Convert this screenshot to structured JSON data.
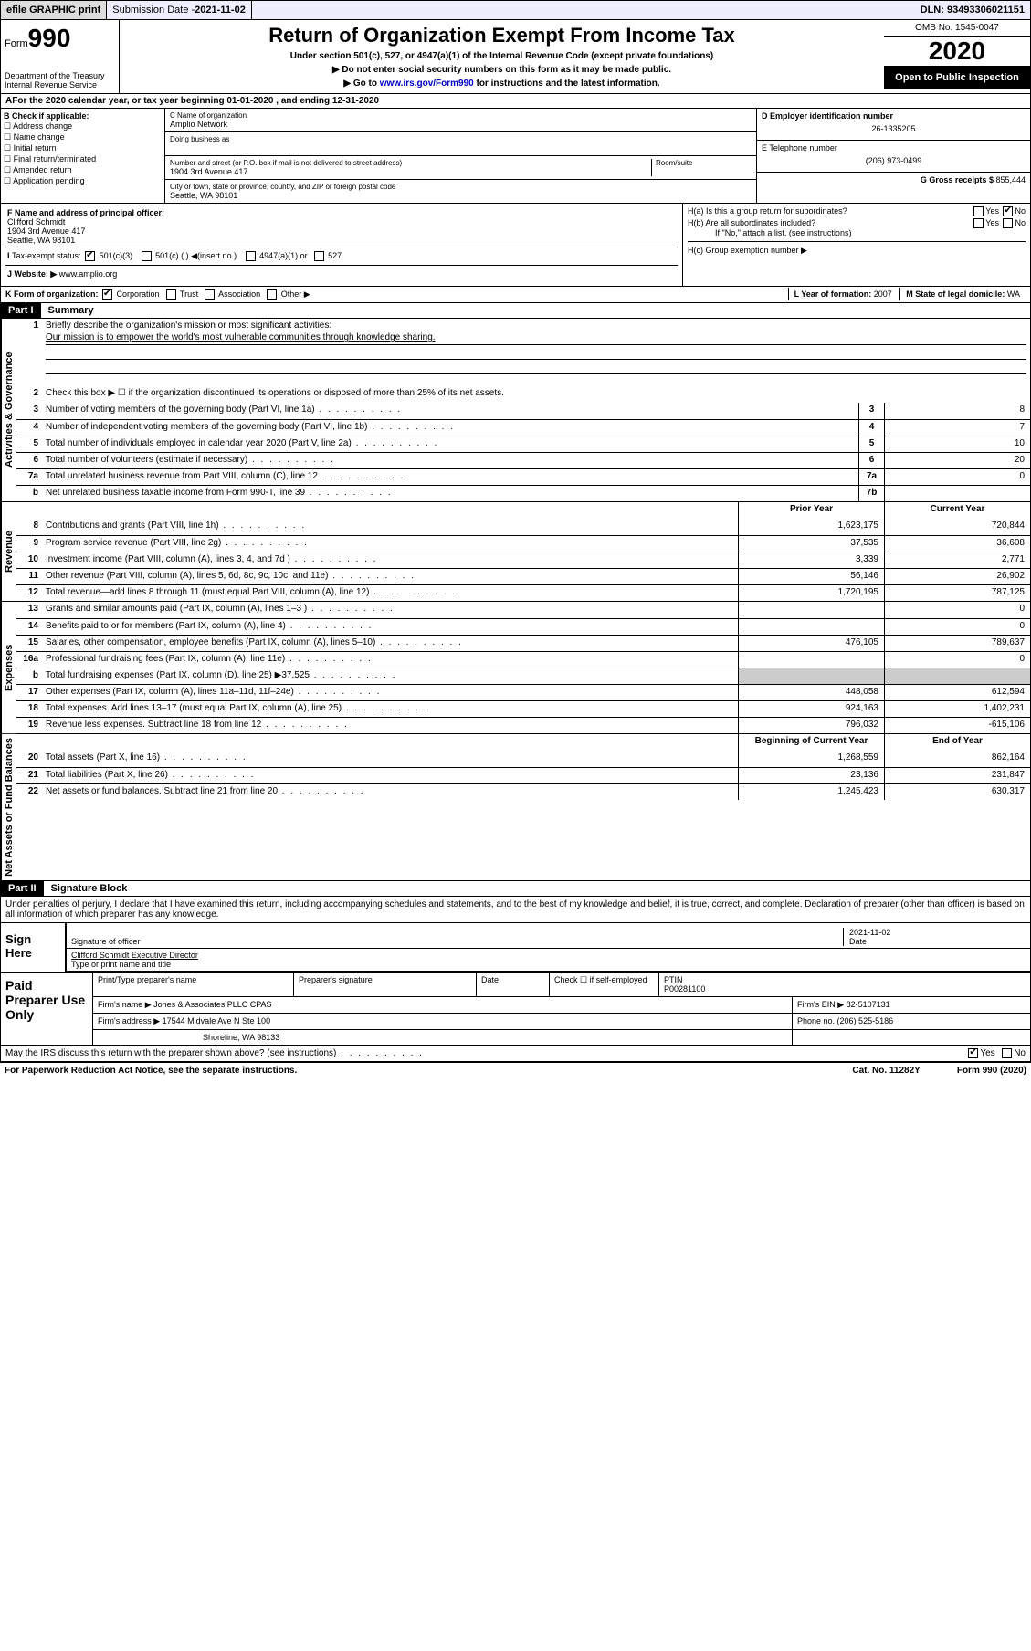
{
  "topbar": {
    "efile": "efile GRAPHIC print",
    "subdate_lbl": "Submission Date - ",
    "subdate": "2021-11-02",
    "dln_lbl": "DLN: ",
    "dln": "93493306021151"
  },
  "header": {
    "form_word": "Form",
    "form_num": "990",
    "dept": "Department of the Treasury\nInternal Revenue Service",
    "title": "Return of Organization Exempt From Income Tax",
    "sub1": "Under section 501(c), 527, or 4947(a)(1) of the Internal Revenue Code (except private foundations)",
    "sub2": "Do not enter social security numbers on this form as it may be made public.",
    "sub3_pre": "Go to ",
    "sub3_link": "www.irs.gov/Form990",
    "sub3_post": " for instructions and the latest information.",
    "omb": "OMB No. 1545-0047",
    "year": "2020",
    "open": "Open to Public Inspection"
  },
  "A": {
    "text": "For the 2020 calendar year, or tax year beginning 01-01-2020    , and ending 12-31-2020"
  },
  "B": {
    "hdr": "B Check if applicable:",
    "opts": [
      "Address change",
      "Name change",
      "Initial return",
      "Final return/terminated",
      "Amended return",
      "Application pending"
    ]
  },
  "C": {
    "name_lbl": "C Name of organization",
    "name": "Amplio Network",
    "dba_lbl": "Doing business as",
    "addr_lbl": "Number and street (or P.O. box if mail is not delivered to street address)",
    "room_lbl": "Room/suite",
    "addr": "1904 3rd Avenue 417",
    "city_lbl": "City or town, state or province, country, and ZIP or foreign postal code",
    "city": "Seattle, WA  98101"
  },
  "D": {
    "lbl": "D Employer identification number",
    "val": "26-1335205"
  },
  "E": {
    "lbl": "E Telephone number",
    "val": "(206) 973-0499"
  },
  "G": {
    "lbl": "G Gross receipts $ ",
    "val": "855,444"
  },
  "F": {
    "lbl": "F  Name and address of principal officer:",
    "name": "Clifford Schmidt",
    "addr1": "1904 3rd Avenue 417",
    "addr2": "Seattle, WA  98101"
  },
  "H": {
    "a": "H(a)  Is this a group return for subordinates?",
    "b": "H(b)  Are all subordinates included?",
    "b_note": "If \"No,\" attach a list. (see instructions)",
    "c": "H(c)  Group exemption number ▶",
    "yes": "Yes",
    "no": "No"
  },
  "I": {
    "lbl": "Tax-exempt status:",
    "o1": "501(c)(3)",
    "o2": "501(c) (  ) ◀(insert no.)",
    "o3": "4947(a)(1) or",
    "o4": "527"
  },
  "J": {
    "lbl": "J   Website: ▶  ",
    "val": "www.amplio.org"
  },
  "K": {
    "lbl": "K Form of organization:",
    "o1": "Corporation",
    "o2": "Trust",
    "o3": "Association",
    "o4": "Other ▶"
  },
  "L": {
    "lbl": "L Year of formation: ",
    "val": "2007"
  },
  "M": {
    "lbl": "M State of legal domicile: ",
    "val": "WA"
  },
  "part1": {
    "num": "Part I",
    "title": "Summary",
    "q1": "Briefly describe the organization's mission or most significant activities:",
    "mission": "Our mission is to empower the world's most vulnerable communities through knowledge sharing.",
    "q2": "Check this box ▶ ☐  if the organization discontinued its operations or disposed of more than 25% of its net assets.",
    "rows_gov": [
      {
        "n": "3",
        "t": "Number of voting members of the governing body (Part VI, line 1a)",
        "nb": "3",
        "v": "8"
      },
      {
        "n": "4",
        "t": "Number of independent voting members of the governing body (Part VI, line 1b)",
        "nb": "4",
        "v": "7"
      },
      {
        "n": "5",
        "t": "Total number of individuals employed in calendar year 2020 (Part V, line 2a)",
        "nb": "5",
        "v": "10"
      },
      {
        "n": "6",
        "t": "Total number of volunteers (estimate if necessary)",
        "nb": "6",
        "v": "20"
      },
      {
        "n": "7a",
        "t": "Total unrelated business revenue from Part VIII, column (C), line 12",
        "nb": "7a",
        "v": "0"
      },
      {
        "n": "b",
        "t": "Net unrelated business taxable income from Form 990-T, line 39",
        "nb": "7b",
        "v": ""
      }
    ],
    "col_prior": "Prior Year",
    "col_curr": "Current Year",
    "rows_rev": [
      {
        "n": "8",
        "t": "Contributions and grants (Part VIII, line 1h)",
        "p": "1,623,175",
        "c": "720,844"
      },
      {
        "n": "9",
        "t": "Program service revenue (Part VIII, line 2g)",
        "p": "37,535",
        "c": "36,608"
      },
      {
        "n": "10",
        "t": "Investment income (Part VIII, column (A), lines 3, 4, and 7d )",
        "p": "3,339",
        "c": "2,771"
      },
      {
        "n": "11",
        "t": "Other revenue (Part VIII, column (A), lines 5, 6d, 8c, 9c, 10c, and 11e)",
        "p": "56,146",
        "c": "26,902"
      },
      {
        "n": "12",
        "t": "Total revenue—add lines 8 through 11 (must equal Part VIII, column (A), line 12)",
        "p": "1,720,195",
        "c": "787,125"
      }
    ],
    "rows_exp": [
      {
        "n": "13",
        "t": "Grants and similar amounts paid (Part IX, column (A), lines 1–3 )",
        "p": "",
        "c": "0"
      },
      {
        "n": "14",
        "t": "Benefits paid to or for members (Part IX, column (A), line 4)",
        "p": "",
        "c": "0"
      },
      {
        "n": "15",
        "t": "Salaries, other compensation, employee benefits (Part IX, column (A), lines 5–10)",
        "p": "476,105",
        "c": "789,637"
      },
      {
        "n": "16a",
        "t": "Professional fundraising fees (Part IX, column (A), line 11e)",
        "p": "",
        "c": "0"
      },
      {
        "n": "b",
        "t": "Total fundraising expenses (Part IX, column (D), line 25) ▶37,525",
        "p": "GREY",
        "c": "GREY"
      },
      {
        "n": "17",
        "t": "Other expenses (Part IX, column (A), lines 11a–11d, 11f–24e)",
        "p": "448,058",
        "c": "612,594"
      },
      {
        "n": "18",
        "t": "Total expenses. Add lines 13–17 (must equal Part IX, column (A), line 25)",
        "p": "924,163",
        "c": "1,402,231"
      },
      {
        "n": "19",
        "t": "Revenue less expenses. Subtract line 18 from line 12",
        "p": "796,032",
        "c": "-615,106"
      }
    ],
    "col_beg": "Beginning of Current Year",
    "col_end": "End of Year",
    "rows_net": [
      {
        "n": "20",
        "t": "Total assets (Part X, line 16)",
        "p": "1,268,559",
        "c": "862,164"
      },
      {
        "n": "21",
        "t": "Total liabilities (Part X, line 26)",
        "p": "23,136",
        "c": "231,847"
      },
      {
        "n": "22",
        "t": "Net assets or fund balances. Subtract line 21 from line 20",
        "p": "1,245,423",
        "c": "630,317"
      }
    ],
    "vtab1": "Activities & Governance",
    "vtab2": "Revenue",
    "vtab3": "Expenses",
    "vtab4": "Net Assets or Fund Balances"
  },
  "part2": {
    "num": "Part II",
    "title": "Signature Block",
    "decl": "Under penalties of perjury, I declare that I have examined this return, including accompanying schedules and statements, and to the best of my knowledge and belief, it is true, correct, and complete. Declaration of preparer (other than officer) is based on all information of which preparer has any knowledge."
  },
  "sign": {
    "hdr": "Sign Here",
    "sig_lbl": "Signature of officer",
    "date_lbl": "Date",
    "date": "2021-11-02",
    "name": "Clifford Schmidt  Executive Director",
    "name_lbl": "Type or print name and title"
  },
  "prep": {
    "hdr": "Paid Preparer Use Only",
    "r1": {
      "c1": "Print/Type preparer's name",
      "c2": "Preparer's signature",
      "c3": "Date",
      "c4": "Check ☐ if self-employed",
      "c5": "PTIN",
      "ptin": "P00281100"
    },
    "r2": {
      "lbl": "Firm's name     ▶ ",
      "val": "Jones & Associates PLLC CPAS",
      "ein_lbl": "Firm's EIN ▶ ",
      "ein": "82-5107131"
    },
    "r3": {
      "lbl": "Firm's address ▶ ",
      "val": "17544 Midvale Ave N Ste 100",
      "ph_lbl": "Phone no. ",
      "ph": "(206) 525-5186"
    },
    "r3b": "Shoreline, WA  98133",
    "discuss": "May the IRS discuss this return with the preparer shown above? (see instructions)"
  },
  "footer": {
    "l": "For Paperwork Reduction Act Notice, see the separate instructions.",
    "m": "Cat. No. 11282Y",
    "r": "Form 990 (2020)"
  }
}
